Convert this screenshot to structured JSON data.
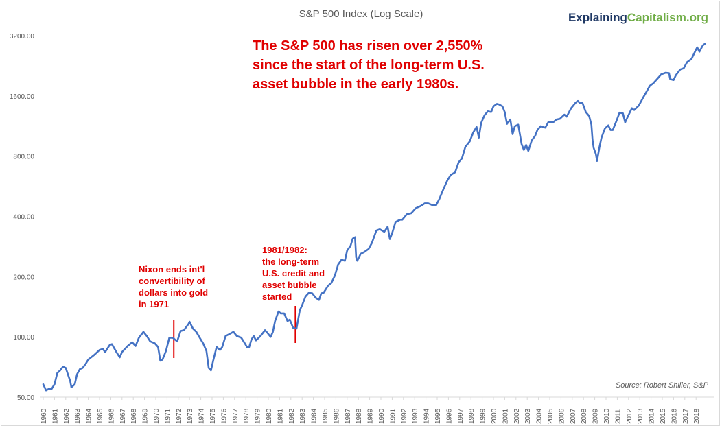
{
  "chart_data": {
    "type": "line",
    "title": "S&P 500 Index (Log Scale)",
    "xlabel": "",
    "ylabel": "",
    "y_scale": "log",
    "ylim": [
      50,
      3500
    ],
    "y_ticks": [
      "50.00",
      "100.00",
      "200.00",
      "400.00",
      "800.00",
      "1600.00",
      "3200.00"
    ],
    "x_ticks": [
      "1960",
      "1961",
      "1962",
      "1963",
      "1964",
      "1965",
      "1966",
      "1967",
      "1968",
      "1969",
      "1970",
      "1971",
      "1972",
      "1973",
      "1974",
      "1975",
      "1976",
      "1977",
      "1978",
      "1979",
      "1980",
      "1981",
      "1982",
      "1983",
      "1984",
      "1985",
      "1986",
      "1987",
      "1988",
      "1989",
      "1990",
      "1991",
      "1992",
      "1993",
      "1994",
      "1995",
      "1996",
      "1997",
      "1998",
      "1999",
      "2000",
      "2001",
      "2002",
      "2003",
      "2004",
      "2005",
      "2006",
      "2007",
      "2008",
      "2009",
      "2010",
      "2011",
      "2012",
      "2013",
      "2014",
      "2015",
      "2016",
      "2017",
      "2018"
    ],
    "grid": false,
    "line_color": "#4472c4",
    "series": [
      {
        "points": [
          [
            1960.0,
            58
          ],
          [
            1960.25,
            54
          ],
          [
            1960.5,
            55
          ],
          [
            1960.75,
            55
          ],
          [
            1961.0,
            58
          ],
          [
            1961.25,
            66
          ],
          [
            1961.5,
            68
          ],
          [
            1961.75,
            71
          ],
          [
            1962.0,
            70
          ],
          [
            1962.4,
            60
          ],
          [
            1962.5,
            56
          ],
          [
            1962.8,
            58
          ],
          [
            1963.0,
            65
          ],
          [
            1963.25,
            69
          ],
          [
            1963.5,
            70
          ],
          [
            1963.75,
            73
          ],
          [
            1964.0,
            77
          ],
          [
            1964.5,
            81
          ],
          [
            1965.0,
            86
          ],
          [
            1965.3,
            87
          ],
          [
            1965.5,
            84
          ],
          [
            1965.9,
            91
          ],
          [
            1966.1,
            92
          ],
          [
            1966.5,
            84
          ],
          [
            1966.8,
            79
          ],
          [
            1967.0,
            84
          ],
          [
            1967.5,
            90
          ],
          [
            1967.9,
            94
          ],
          [
            1968.2,
            90
          ],
          [
            1968.5,
            99
          ],
          [
            1968.9,
            106
          ],
          [
            1969.2,
            101
          ],
          [
            1969.5,
            95
          ],
          [
            1969.9,
            93
          ],
          [
            1970.2,
            89
          ],
          [
            1970.4,
            76
          ],
          [
            1970.6,
            77
          ],
          [
            1970.9,
            85
          ],
          [
            1971.2,
            99
          ],
          [
            1971.5,
            99
          ],
          [
            1971.7,
            97
          ],
          [
            1971.9,
            95
          ],
          [
            1972.2,
            107
          ],
          [
            1972.5,
            108
          ],
          [
            1972.9,
            116
          ],
          [
            1973.0,
            119
          ],
          [
            1973.3,
            110
          ],
          [
            1973.6,
            106
          ],
          [
            1973.9,
            99
          ],
          [
            1974.2,
            93
          ],
          [
            1974.5,
            85
          ],
          [
            1974.7,
            70
          ],
          [
            1974.9,
            68
          ],
          [
            1975.1,
            76
          ],
          [
            1975.4,
            89
          ],
          [
            1975.7,
            86
          ],
          [
            1975.9,
            89
          ],
          [
            1976.2,
            101
          ],
          [
            1976.5,
            103
          ],
          [
            1976.9,
            106
          ],
          [
            1977.2,
            101
          ],
          [
            1977.6,
            99
          ],
          [
            1977.9,
            93
          ],
          [
            1978.1,
            89
          ],
          [
            1978.3,
            89
          ],
          [
            1978.5,
            97
          ],
          [
            1978.7,
            101
          ],
          [
            1978.9,
            96
          ],
          [
            1979.3,
            101
          ],
          [
            1979.7,
            108
          ],
          [
            1979.9,
            105
          ],
          [
            1980.2,
            100
          ],
          [
            1980.4,
            106
          ],
          [
            1980.6,
            120
          ],
          [
            1980.9,
            134
          ],
          [
            1981.1,
            131
          ],
          [
            1981.4,
            131
          ],
          [
            1981.7,
            120
          ],
          [
            1981.9,
            122
          ],
          [
            1982.2,
            111
          ],
          [
            1982.5,
            110
          ],
          [
            1982.6,
            118
          ],
          [
            1982.8,
            136
          ],
          [
            1983.0,
            144
          ],
          [
            1983.3,
            159
          ],
          [
            1983.6,
            166
          ],
          [
            1983.9,
            165
          ],
          [
            1984.2,
            157
          ],
          [
            1984.5,
            153
          ],
          [
            1984.7,
            165
          ],
          [
            1984.9,
            166
          ],
          [
            1985.3,
            180
          ],
          [
            1985.6,
            186
          ],
          [
            1985.9,
            202
          ],
          [
            1986.2,
            230
          ],
          [
            1986.5,
            243
          ],
          [
            1986.8,
            240
          ],
          [
            1987.0,
            270
          ],
          [
            1987.3,
            285
          ],
          [
            1987.5,
            310
          ],
          [
            1987.7,
            315
          ],
          [
            1987.8,
            250
          ],
          [
            1987.9,
            240
          ],
          [
            1988.2,
            260
          ],
          [
            1988.5,
            265
          ],
          [
            1988.9,
            275
          ],
          [
            1989.2,
            295
          ],
          [
            1989.6,
            340
          ],
          [
            1989.9,
            345
          ],
          [
            1990.3,
            335
          ],
          [
            1990.6,
            355
          ],
          [
            1990.8,
            308
          ],
          [
            1991.0,
            330
          ],
          [
            1991.3,
            375
          ],
          [
            1991.7,
            385
          ],
          [
            1991.9,
            385
          ],
          [
            1992.3,
            410
          ],
          [
            1992.7,
            415
          ],
          [
            1993.1,
            440
          ],
          [
            1993.5,
            450
          ],
          [
            1993.9,
            465
          ],
          [
            1994.2,
            465
          ],
          [
            1994.6,
            455
          ],
          [
            1994.9,
            455
          ],
          [
            1995.2,
            490
          ],
          [
            1995.6,
            555
          ],
          [
            1995.9,
            605
          ],
          [
            1996.2,
            645
          ],
          [
            1996.6,
            665
          ],
          [
            1996.9,
            745
          ],
          [
            1997.2,
            780
          ],
          [
            1997.5,
            890
          ],
          [
            1997.9,
            950
          ],
          [
            1998.2,
            1050
          ],
          [
            1998.5,
            1120
          ],
          [
            1998.7,
            990
          ],
          [
            1998.9,
            1170
          ],
          [
            1999.2,
            1280
          ],
          [
            1999.5,
            1340
          ],
          [
            1999.8,
            1330
          ],
          [
            2000.0,
            1420
          ],
          [
            2000.3,
            1460
          ],
          [
            2000.5,
            1450
          ],
          [
            2000.8,
            1420
          ],
          [
            2001.0,
            1330
          ],
          [
            2001.2,
            1160
          ],
          [
            2001.5,
            1220
          ],
          [
            2001.7,
            1030
          ],
          [
            2001.9,
            1130
          ],
          [
            2002.2,
            1150
          ],
          [
            2002.5,
            920
          ],
          [
            2002.7,
            860
          ],
          [
            2002.9,
            910
          ],
          [
            2003.1,
            850
          ],
          [
            2003.4,
            960
          ],
          [
            2003.7,
            1010
          ],
          [
            2003.9,
            1080
          ],
          [
            2004.2,
            1130
          ],
          [
            2004.6,
            1110
          ],
          [
            2004.9,
            1190
          ],
          [
            2005.3,
            1180
          ],
          [
            2005.6,
            1220
          ],
          [
            2005.9,
            1230
          ],
          [
            2006.3,
            1290
          ],
          [
            2006.5,
            1260
          ],
          [
            2006.9,
            1390
          ],
          [
            2007.3,
            1480
          ],
          [
            2007.5,
            1510
          ],
          [
            2007.7,
            1470
          ],
          [
            2007.9,
            1480
          ],
          [
            2008.2,
            1330
          ],
          [
            2008.5,
            1270
          ],
          [
            2008.7,
            1150
          ],
          [
            2008.8,
            970
          ],
          [
            2008.9,
            880
          ],
          [
            2009.1,
            820
          ],
          [
            2009.2,
            757
          ],
          [
            2009.4,
            880
          ],
          [
            2009.6,
            990
          ],
          [
            2009.9,
            1100
          ],
          [
            2010.2,
            1140
          ],
          [
            2010.4,
            1080
          ],
          [
            2010.6,
            1080
          ],
          [
            2010.9,
            1190
          ],
          [
            2011.2,
            1320
          ],
          [
            2011.5,
            1310
          ],
          [
            2011.7,
            1180
          ],
          [
            2011.9,
            1250
          ],
          [
            2012.3,
            1390
          ],
          [
            2012.5,
            1360
          ],
          [
            2012.9,
            1430
          ],
          [
            2013.3,
            1570
          ],
          [
            2013.6,
            1680
          ],
          [
            2013.9,
            1800
          ],
          [
            2014.2,
            1850
          ],
          [
            2014.6,
            1960
          ],
          [
            2014.9,
            2050
          ],
          [
            2015.3,
            2090
          ],
          [
            2015.6,
            2080
          ],
          [
            2015.7,
            1940
          ],
          [
            2016.0,
            1920
          ],
          [
            2016.2,
            2030
          ],
          [
            2016.6,
            2170
          ],
          [
            2016.9,
            2200
          ],
          [
            2017.2,
            2360
          ],
          [
            2017.6,
            2450
          ],
          [
            2017.9,
            2660
          ],
          [
            2018.1,
            2800
          ],
          [
            2018.3,
            2660
          ],
          [
            2018.6,
            2860
          ],
          [
            2018.8,
            2920
          ]
        ]
      }
    ],
    "annotations": {
      "headline_lines": [
        "The S&P 500 has risen over 2,550%",
        "since the start of the long-term U.S.",
        "asset bubble in the early 1980s."
      ],
      "nixon_lines": [
        "Nixon ends int'l",
        "convertibility of",
        "dollars into gold",
        "in 1971"
      ],
      "bubble_lines": [
        "1981/1982:",
        "the long-term",
        "U.S. credit and",
        "asset bubble",
        "started"
      ],
      "marker_years": [
        1971.6,
        1982.4
      ],
      "marker_color": "#e00000"
    },
    "brand_part1": "Explaining",
    "brand_part2": "Capitalism.org",
    "source": "Source: Robert Shiller, S&P"
  }
}
